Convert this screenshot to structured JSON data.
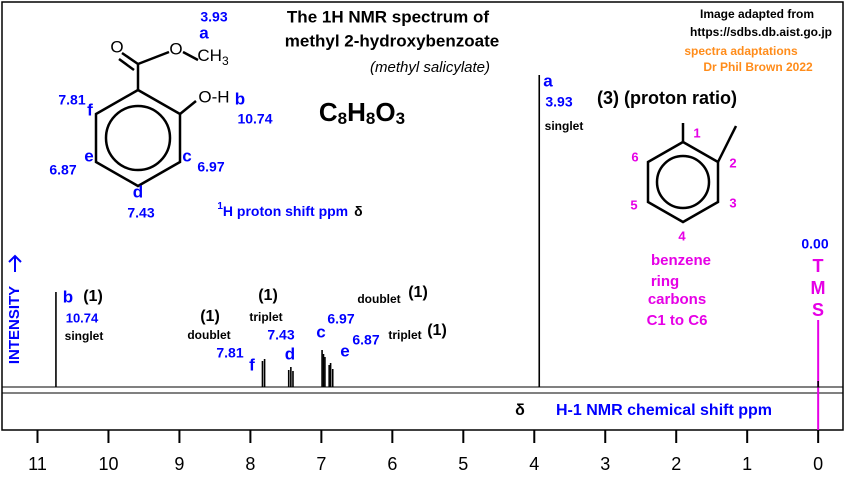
{
  "chart_data": {
    "type": "spectrum",
    "title_lines": [
      "The 1H NMR spectrum of",
      "methyl 2-hydroxybenzoate",
      "(methyl salicylate)"
    ],
    "credits": [
      "Image adapted from",
      "https://sdbs.db.aist.go.jp",
      "spectra adaptations",
      "Dr Phil Brown 2022"
    ],
    "formula": [
      "C",
      "8",
      "H",
      "8",
      "O",
      "3"
    ],
    "methyl_group": [
      "CH",
      "3"
    ],
    "shift_note": [
      "1",
      "H  proton shift  ppm",
      "δ"
    ],
    "xlabel_symbol": "δ",
    "xlabel": "H-1 NMR chemical shift  ppm",
    "ylabel": "INTENSITY",
    "xlim": [
      11.5,
      -0.35
    ],
    "xticks": [
      11,
      10,
      9,
      8,
      7,
      6,
      5,
      4,
      3,
      2,
      1,
      0
    ],
    "ylim": [
      0,
      384
    ],
    "color": "#000000",
    "reference_color": "#e600e6",
    "peaks": {
      "x": [
        10.74,
        7.83,
        7.8,
        7.46,
        7.43,
        7.4,
        6.99,
        6.97,
        6.95,
        6.89,
        6.87,
        6.84,
        3.93,
        0.0
      ],
      "values": [
        95,
        26,
        28,
        17,
        20,
        16,
        37,
        33,
        30,
        22,
        24,
        18,
        312,
        6
      ]
    },
    "labels": [
      "b",
      "(1)",
      "10.74",
      "singlet",
      "(1)",
      "doublet",
      "7.81",
      "f",
      "(1)",
      "triplet",
      "7.43",
      "d",
      "c",
      "6.97",
      "e",
      "6.87",
      "doublet",
      "(1)",
      "triplet",
      "(1)",
      "a",
      "3.93",
      "singlet",
      "(3) (proton ratio)",
      "0.00",
      "T",
      "M",
      "S",
      "benzene",
      "ring",
      "carbons",
      "C1 to C6",
      "1",
      "2",
      "3",
      "4",
      "5",
      "6",
      "3.93",
      "a",
      "7.81",
      "f",
      "b",
      "10.74",
      "e",
      "6.87",
      "c",
      "6.97",
      "d",
      "7.43",
      "O",
      "O",
      "O-H"
    ]
  }
}
